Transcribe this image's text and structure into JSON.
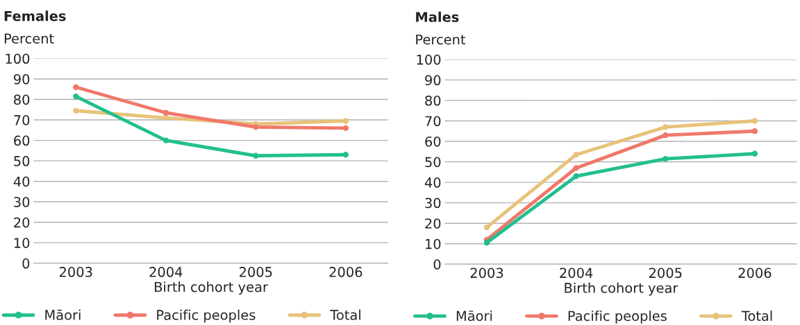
{
  "chart_data": [
    {
      "type": "line",
      "title": "Females",
      "ylabel": "Percent",
      "xlabel": "Birth cohort year",
      "categories": [
        "2003",
        "2004",
        "2005",
        "2006"
      ],
      "ylim": [
        0,
        100
      ],
      "yticks": [
        0,
        10,
        20,
        30,
        40,
        50,
        60,
        70,
        80,
        90,
        100
      ],
      "grid": "y",
      "legend": "bottom",
      "marker": "circle",
      "line_style": "solid",
      "series": [
        {
          "name": "Māori",
          "color": "#22bf8e",
          "values": [
            81.5,
            60,
            52.5,
            53
          ]
        },
        {
          "name": "Pacific peoples",
          "color": "#f0786a",
          "values": [
            86,
            73.5,
            66.5,
            66
          ]
        },
        {
          "name": "Total",
          "color": "#e8c27a",
          "values": [
            74.5,
            71,
            68,
            69.5
          ]
        }
      ]
    },
    {
      "type": "line",
      "title": "Males",
      "ylabel": "Percent",
      "xlabel": "Birth cohort year",
      "categories": [
        "2003",
        "2004",
        "2005",
        "2006"
      ],
      "ylim": [
        0,
        100
      ],
      "yticks": [
        0,
        10,
        20,
        30,
        40,
        50,
        60,
        70,
        80,
        90,
        100
      ],
      "grid": "y",
      "legend": "bottom",
      "marker": "circle",
      "line_style": "solid",
      "series": [
        {
          "name": "Māori",
          "color": "#22bf8e",
          "values": [
            10.5,
            43,
            51.5,
            54
          ]
        },
        {
          "name": "Pacific peoples",
          "color": "#f0786a",
          "values": [
            12,
            47,
            63,
            65
          ]
        },
        {
          "name": "Total",
          "color": "#e8c27a",
          "values": [
            18,
            53.5,
            67,
            70
          ]
        }
      ]
    }
  ]
}
